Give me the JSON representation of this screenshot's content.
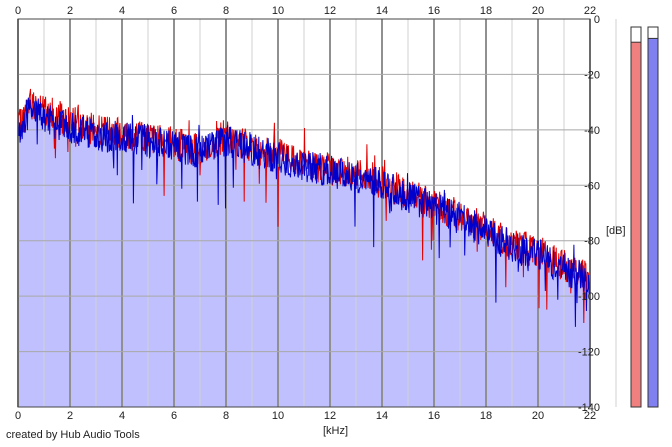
{
  "chart_data": {
    "type": "line",
    "title": "",
    "xlabel": "[kHz]",
    "ylabel": "[dB]",
    "xlim": [
      0,
      22
    ],
    "ylim": [
      -140,
      0
    ],
    "x_ticks": [
      0,
      2,
      4,
      6,
      8,
      10,
      12,
      14,
      16,
      18,
      20,
      22
    ],
    "y_ticks": [
      0,
      -20,
      -40,
      -60,
      -80,
      -100,
      -120,
      -140
    ],
    "grid": true,
    "legend": "none",
    "series": [
      {
        "color": "#e00000",
        "x": [
          0,
          0.5,
          1,
          2,
          3,
          4,
          5,
          6,
          7,
          8,
          9,
          10,
          11,
          12,
          13,
          14,
          15,
          16,
          17,
          18,
          19,
          20,
          21,
          22
        ],
        "y": [
          -40,
          -30,
          -33,
          -37,
          -40,
          -41,
          -43,
          -45,
          -47,
          -42,
          -46,
          -49,
          -52,
          -54,
          -55,
          -59,
          -63,
          -67,
          -71,
          -76,
          -81,
          -84,
          -89,
          -94
        ]
      },
      {
        "color": "#0000cc",
        "fill": "#c0c0ff",
        "x": [
          0,
          0.5,
          1,
          2,
          3,
          4,
          5,
          6,
          7,
          8,
          9,
          10,
          11,
          12,
          13,
          14,
          15,
          16,
          17,
          18,
          19,
          20,
          21,
          22
        ],
        "y": [
          -40,
          -32,
          -36,
          -39,
          -42,
          -43,
          -44,
          -46,
          -48,
          -44,
          -47,
          -50,
          -53,
          -55,
          -57,
          -60,
          -64,
          -68,
          -72,
          -77,
          -82,
          -85,
          -90,
          -95
        ]
      }
    ],
    "level_meters": [
      {
        "color": "#f08080",
        "level": 0.96
      },
      {
        "color": "#8080f0",
        "level": 0.97
      }
    ]
  },
  "footer": {
    "credit": "created by Hub Audio Tools"
  }
}
